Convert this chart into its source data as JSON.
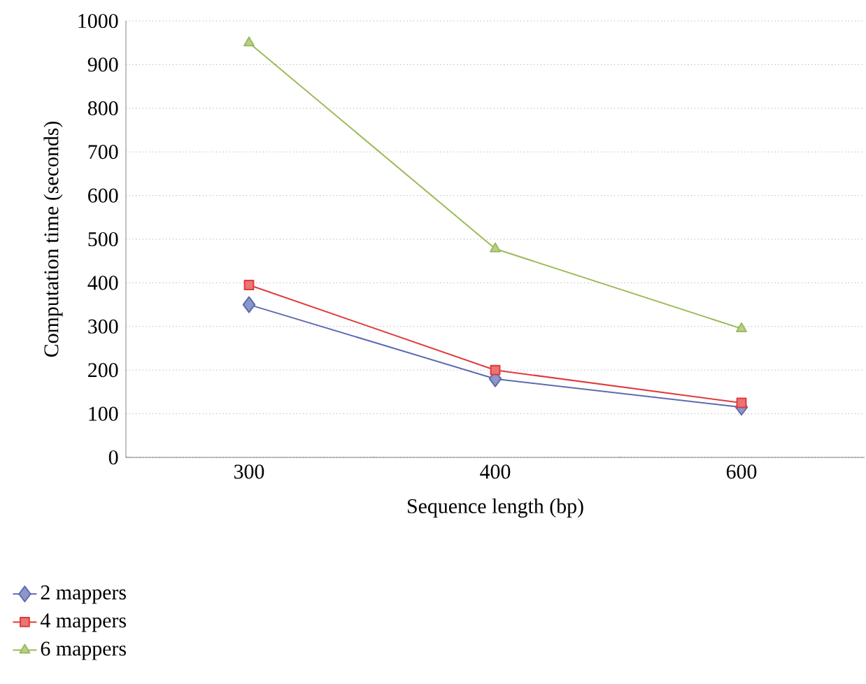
{
  "chart_data": {
    "type": "line",
    "xlabel": "Sequence length (bp)",
    "ylabel": "Computation time (seconds)",
    "categories": [
      "300",
      "400",
      "600"
    ],
    "series": [
      {
        "name": "2 mappers",
        "color": "#5b6bb0",
        "marker": "diamond",
        "values": [
          350,
          180,
          115
        ]
      },
      {
        "name": "4 mappers",
        "color": "#e03a3a",
        "marker": "square",
        "values": [
          395,
          200,
          125
        ]
      },
      {
        "name": "6 mappers",
        "color": "#9bbb59",
        "marker": "triangle",
        "values": [
          950,
          478,
          295
        ]
      }
    ],
    "ylim": [
      0,
      1000
    ],
    "yticks": [
      0,
      100,
      200,
      300,
      400,
      500,
      600,
      700,
      800,
      900,
      1000
    ],
    "grid": "y",
    "legend": "bottom left"
  }
}
